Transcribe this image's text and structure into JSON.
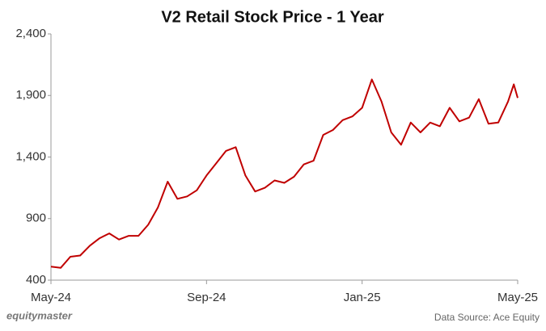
{
  "chart_data": {
    "type": "line",
    "title": "V2 Retail Stock Price - 1 Year",
    "x": [
      0,
      0.25,
      0.5,
      0.75,
      1,
      1.25,
      1.5,
      1.75,
      2,
      2.25,
      2.5,
      2.75,
      3,
      3.25,
      3.5,
      3.75,
      4,
      4.25,
      4.5,
      4.75,
      5,
      5.25,
      5.5,
      5.75,
      6,
      6.25,
      6.5,
      6.75,
      7,
      7.25,
      7.5,
      7.75,
      8,
      8.25,
      8.5,
      8.75,
      9,
      9.25,
      9.5,
      9.75,
      10,
      10.25,
      10.5,
      10.75,
      11,
      11.25,
      11.5,
      11.75,
      11.9,
      12
    ],
    "series": [
      {
        "name": "V2 Retail",
        "color": "#c00000",
        "values": [
          510,
          500,
          590,
          600,
          680,
          740,
          780,
          730,
          760,
          760,
          850,
          990,
          1200,
          1060,
          1080,
          1130,
          1250,
          1350,
          1450,
          1480,
          1250,
          1120,
          1150,
          1210,
          1190,
          1240,
          1340,
          1370,
          1580,
          1620,
          1700,
          1730,
          1800,
          2030,
          1850,
          1600,
          1500,
          1680,
          1600,
          1680,
          1650,
          1800,
          1690,
          1720,
          1870,
          1670,
          1680,
          1850,
          1990,
          1880
        ]
      }
    ],
    "xlim": [
      0,
      12
    ],
    "xticks": [
      {
        "value": 0,
        "label": "May-24"
      },
      {
        "value": 4,
        "label": "Sep-24"
      },
      {
        "value": 8,
        "label": "Jan-25"
      },
      {
        "value": 12,
        "label": "May-25"
      }
    ],
    "ylim": [
      400,
      2400
    ],
    "yticks": [
      400,
      900,
      {
        "value": 1400,
        "label": "1,400"
      },
      {
        "value": 1900,
        "label": "1,900"
      },
      {
        "value": 2400,
        "label": "2,400"
      }
    ],
    "grid": false
  },
  "footer": {
    "brand": "equitymaster",
    "source": "Data Source: Ace Equity"
  }
}
